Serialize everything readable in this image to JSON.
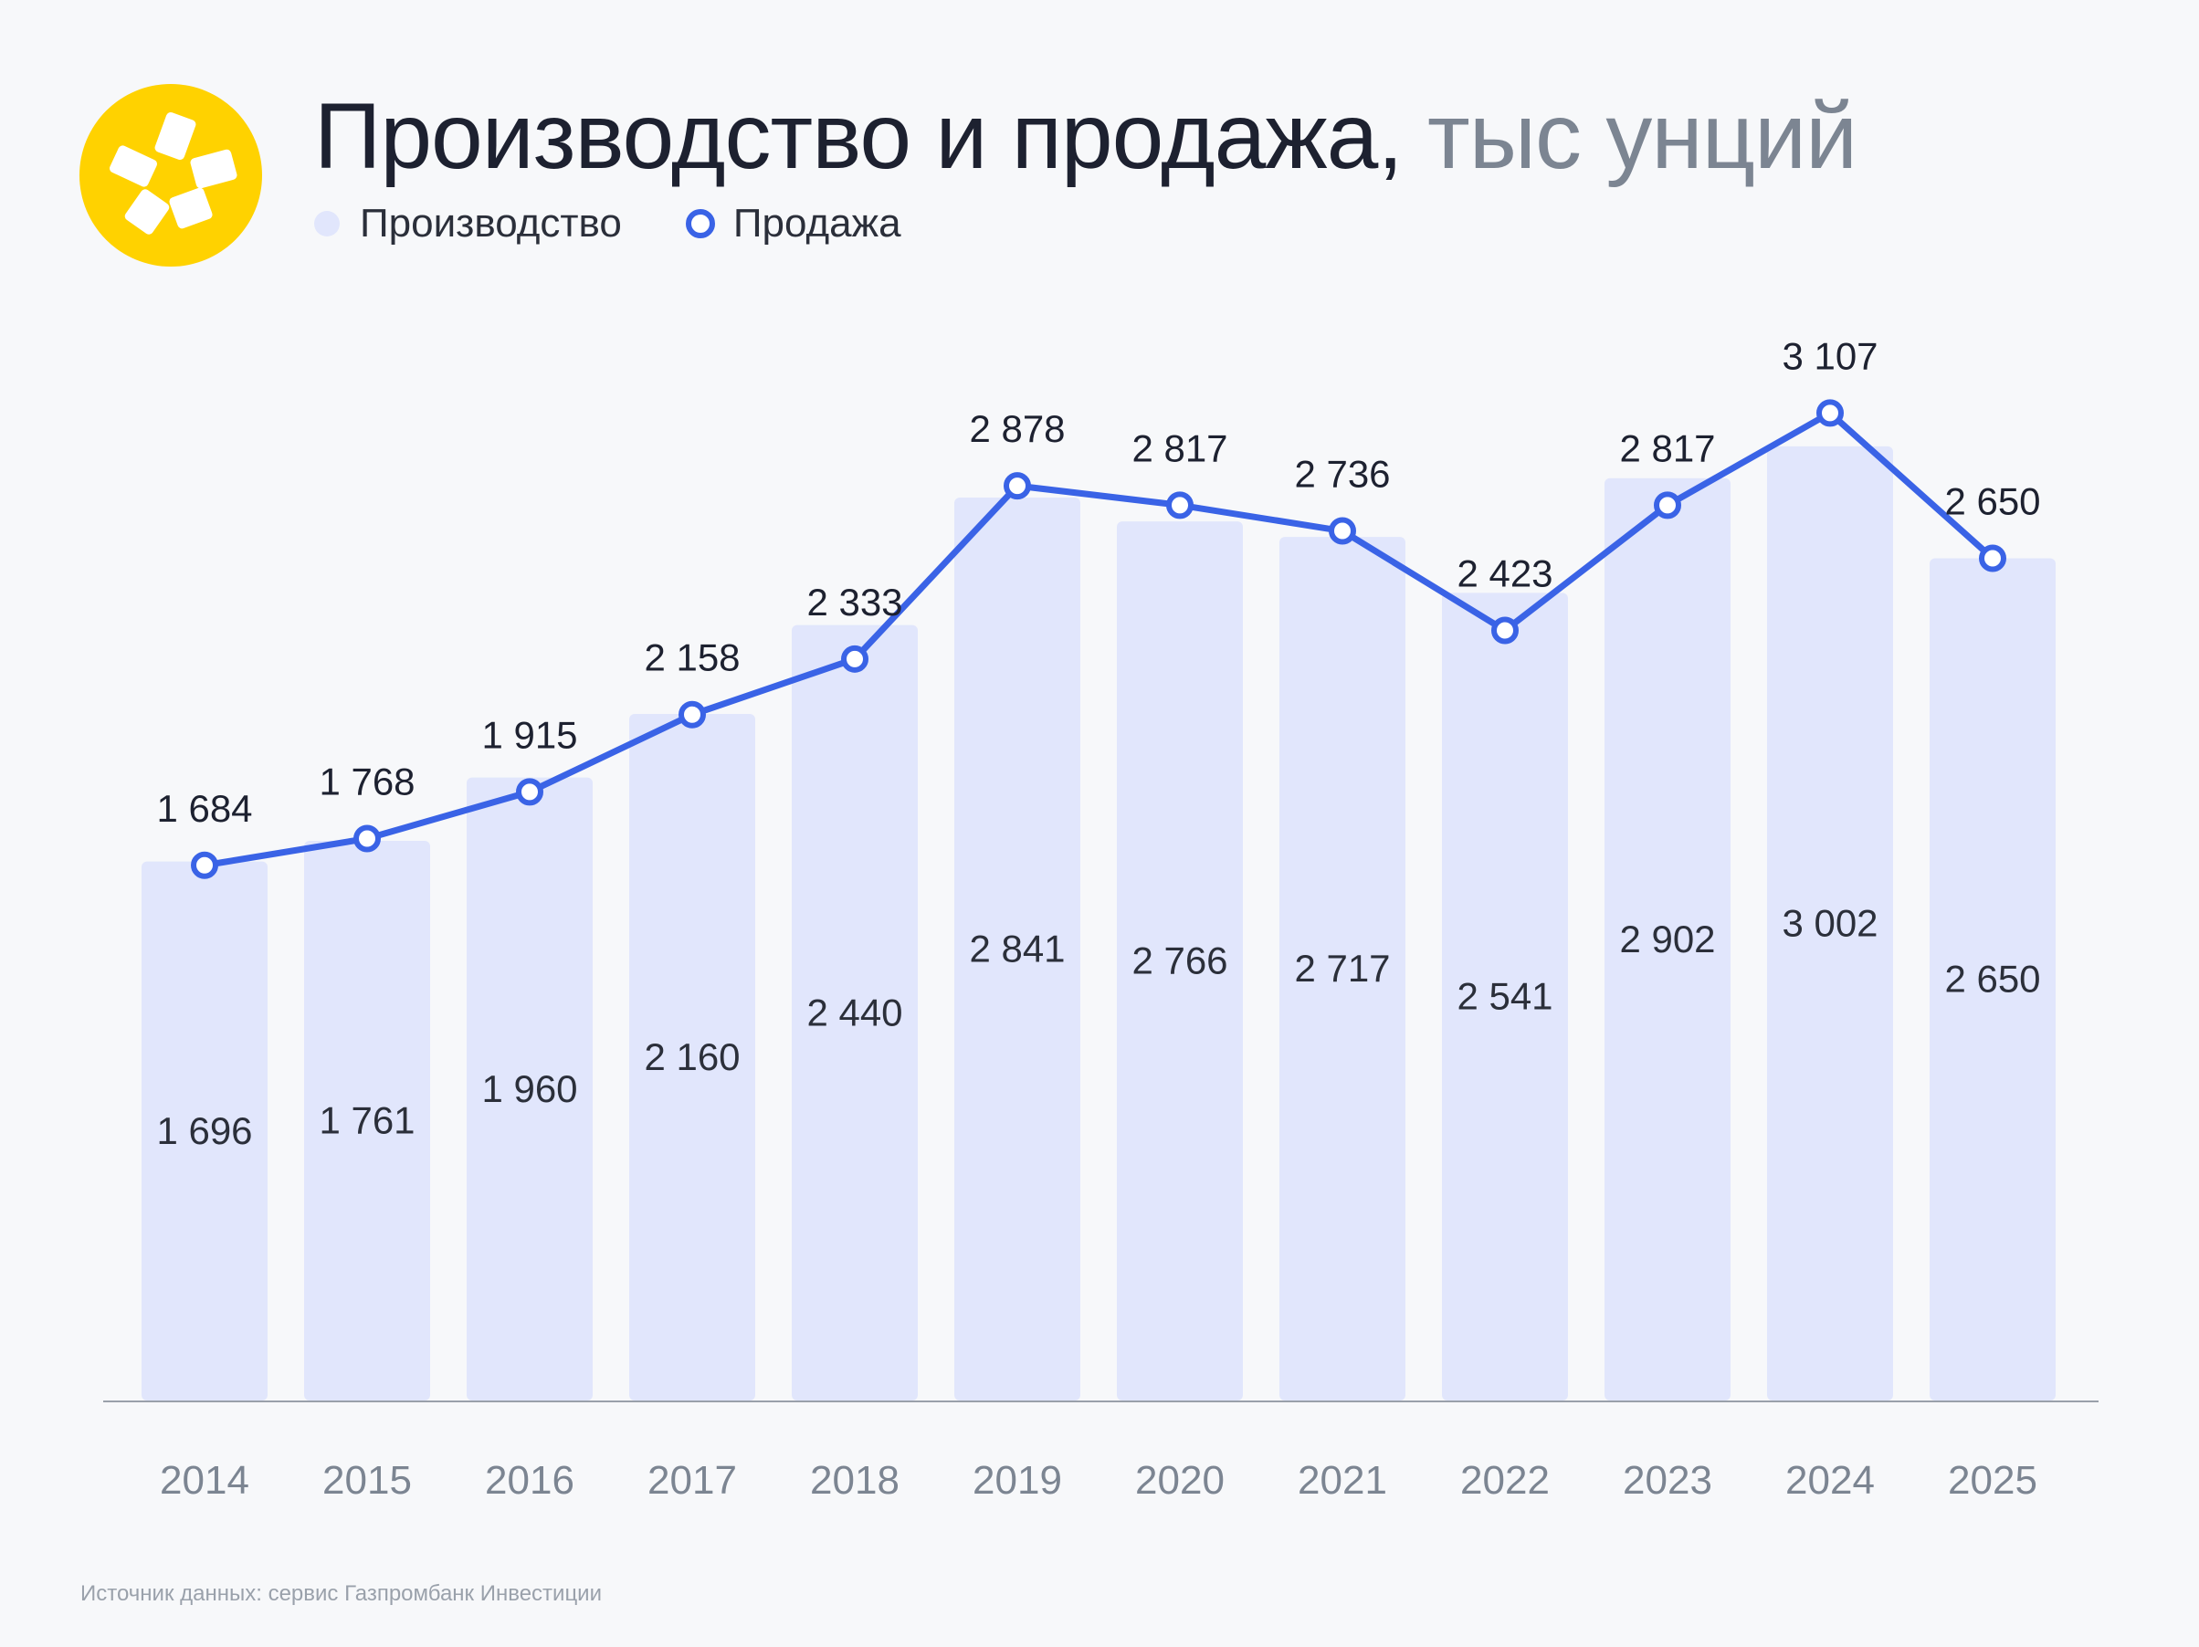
{
  "header": {
    "title_main": "Производство и продажа,",
    "title_unit": "тыс унций"
  },
  "legend": {
    "production_label": "Производство",
    "sales_label": "Продажа"
  },
  "source": "Источник данных: сервис Газпромбанк Инвестиции",
  "colors": {
    "bar": "#e1e6fc",
    "line": "#3a63e6",
    "logo": "#ffd200",
    "axis": "#9aa0aa"
  },
  "chart_data": {
    "type": "bar",
    "categories": [
      "2014",
      "2015",
      "2016",
      "2017",
      "2018",
      "2019",
      "2020",
      "2021",
      "2022",
      "2023",
      "2024",
      "2025"
    ],
    "series": [
      {
        "name": "Производство",
        "type": "bar",
        "values": [
          1696,
          1761,
          1960,
          2160,
          2440,
          2841,
          2766,
          2717,
          2541,
          2902,
          3002,
          2650
        ],
        "labels": [
          "1 696",
          "1 761",
          "1 960",
          "2 160",
          "2 440",
          "2 841",
          "2 766",
          "2 717",
          "2 541",
          "2 902",
          "3 002",
          "2 650"
        ]
      },
      {
        "name": "Продажа",
        "type": "line",
        "values": [
          1684,
          1768,
          1915,
          2158,
          2333,
          2878,
          2817,
          2736,
          2423,
          2817,
          3107,
          2650
        ],
        "labels": [
          "1 684",
          "1 768",
          "1 915",
          "2 158",
          "2 333",
          "2 878",
          "2 817",
          "2 736",
          "2 423",
          "2 817",
          "3 107",
          "2 650"
        ]
      }
    ],
    "ylim": [
      0,
      3200
    ],
    "grid": false,
    "legend_position": "top-left"
  }
}
